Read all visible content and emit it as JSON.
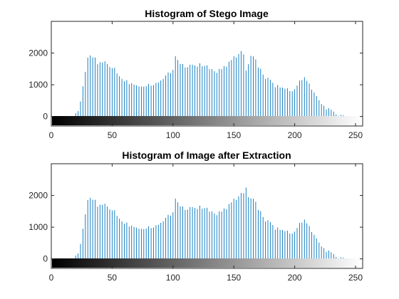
{
  "chart_data": [
    {
      "type": "bar",
      "title": "Histogram of Stego Image",
      "xlabel": "",
      "ylabel": "",
      "xlim": [
        0,
        255
      ],
      "ylim": [
        -300,
        3000
      ],
      "xticks": [
        0,
        50,
        100,
        150,
        200,
        250
      ],
      "yticks": [
        0,
        1000,
        2000
      ],
      "xtick_labels": [
        "0",
        "50",
        "100",
        "150",
        "200",
        "250"
      ],
      "ytick_labels": [
        "0",
        "1000",
        "2000"
      ],
      "bar_color": "#0072bd",
      "colorbar": "grayscale 0-255",
      "profile": {
        "description": "count per gray level (approximate envelope, every other level empty)",
        "x": [
          0,
          18,
          22,
          25,
          28,
          30,
          32,
          35,
          38,
          40,
          45,
          48,
          52,
          55,
          60,
          65,
          70,
          75,
          80,
          85,
          90,
          95,
          100,
          102,
          105,
          110,
          115,
          120,
          125,
          130,
          135,
          140,
          145,
          150,
          155,
          157,
          159,
          160,
          161,
          163,
          165,
          168,
          170,
          175,
          180,
          185,
          190,
          195,
          200,
          205,
          207,
          210,
          212,
          215,
          218,
          220,
          225,
          230,
          235,
          240,
          245,
          255
        ],
        "y": [
          0,
          0,
          150,
          700,
          1450,
          1800,
          1950,
          1880,
          1650,
          1700,
          1720,
          1600,
          1500,
          1300,
          1150,
          1050,
          1000,
          980,
          1000,
          1050,
          1100,
          1300,
          1500,
          1950,
          1700,
          1580,
          1650,
          1600,
          1650,
          1500,
          1400,
          1500,
          1650,
          1850,
          2000,
          2020,
          1950,
          1400,
          1400,
          2000,
          1900,
          1800,
          1600,
          1250,
          1100,
          950,
          900,
          820,
          850,
          1150,
          1200,
          1150,
          1000,
          750,
          600,
          500,
          300,
          170,
          60,
          20,
          0,
          0
        ]
      }
    },
    {
      "type": "bar",
      "title": "Histogram of Image after Extraction",
      "xlabel": "",
      "ylabel": "",
      "xlim": [
        0,
        255
      ],
      "ylim": [
        -300,
        3000
      ],
      "xticks": [
        0,
        50,
        100,
        150,
        200,
        250
      ],
      "yticks": [
        0,
        1000,
        2000
      ],
      "xtick_labels": [
        "0",
        "50",
        "100",
        "150",
        "200",
        "250"
      ],
      "ytick_labels": [
        "0",
        "1000",
        "2000"
      ],
      "bar_color": "#0072bd",
      "colorbar": "grayscale 0-255",
      "profile": {
        "description": "count per gray level (approximate envelope, every other level empty)",
        "x": [
          0,
          18,
          22,
          25,
          28,
          30,
          32,
          35,
          38,
          40,
          45,
          48,
          52,
          55,
          60,
          65,
          70,
          75,
          80,
          85,
          90,
          95,
          100,
          102,
          105,
          110,
          115,
          120,
          125,
          130,
          135,
          140,
          145,
          150,
          155,
          157,
          159,
          160,
          161,
          163,
          165,
          168,
          170,
          175,
          180,
          185,
          190,
          195,
          200,
          205,
          207,
          210,
          212,
          215,
          218,
          220,
          225,
          230,
          235,
          240,
          245,
          255
        ],
        "y": [
          0,
          0,
          150,
          700,
          1450,
          1800,
          1950,
          1880,
          1650,
          1700,
          1720,
          1600,
          1500,
          1300,
          1150,
          1050,
          1000,
          980,
          1000,
          1050,
          1100,
          1300,
          1500,
          1950,
          1700,
          1580,
          1650,
          1600,
          1650,
          1500,
          1400,
          1500,
          1650,
          1850,
          2000,
          2050,
          2150,
          2200,
          2000,
          2000,
          1900,
          1800,
          1600,
          1250,
          1100,
          950,
          900,
          820,
          850,
          1150,
          1200,
          1150,
          1000,
          750,
          600,
          500,
          300,
          170,
          60,
          20,
          0,
          0
        ]
      }
    }
  ]
}
